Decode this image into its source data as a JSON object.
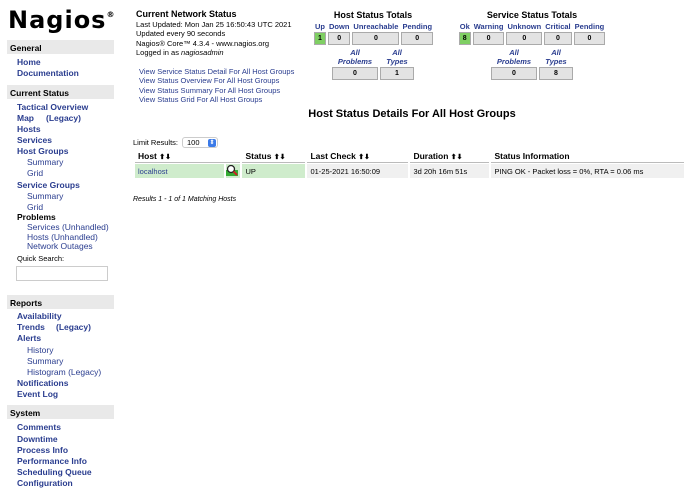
{
  "logo": "Nagios",
  "sidebar": {
    "general": {
      "title": "General",
      "items": [
        "Home",
        "Documentation"
      ]
    },
    "current": {
      "title": "Current Status",
      "items": {
        "tactical": "Tactical Overview",
        "map": "Map",
        "map_legacy": "(Legacy)",
        "hosts": "Hosts",
        "services": "Services",
        "host_groups": "Host Groups",
        "hg_summary": "Summary",
        "hg_grid": "Grid",
        "service_groups": "Service Groups",
        "sg_summary": "Summary",
        "sg_grid": "Grid",
        "problems": "Problems",
        "svc_unhandled": "Services (Unhandled)",
        "hosts_unhandled": "Hosts (Unhandled)",
        "outages": "Network Outages"
      }
    },
    "quick_search": "Quick Search:",
    "reports": {
      "title": "Reports",
      "items": {
        "availability": "Availability",
        "trends": "Trends",
        "trends_legacy": "(Legacy)",
        "alerts": "Alerts",
        "history": "History",
        "summary": "Summary",
        "histogram": "Histogram (Legacy)",
        "notifications": "Notifications",
        "event_log": "Event Log"
      }
    },
    "system": {
      "title": "System",
      "items": [
        "Comments",
        "Downtime",
        "Process Info",
        "Performance Info",
        "Scheduling Queue",
        "Configuration"
      ]
    }
  },
  "info": {
    "title": "Current Network Status",
    "updated": "Last Updated: Mon Jan 25 16:50:43 UTC 2021",
    "interval": "Updated every 90 seconds",
    "version": "Nagios® Core™ 4.3.4 - www.nagios.org",
    "logged_prefix": "Logged in as ",
    "user": "nagiosadmin"
  },
  "links": [
    "View Service Status Detail For All Host Groups",
    "View Status Overview For All Host Groups",
    "View Status Summary For All Host Groups",
    "View Status Grid For All Host Groups"
  ],
  "host_totals": {
    "title": "Host Status Totals",
    "labels": [
      "Up",
      "Down",
      "Unreachable",
      "Pending"
    ],
    "values": [
      "1",
      "0",
      "0",
      "0"
    ],
    "sub_labels": [
      "All Problems",
      "All Types"
    ],
    "sub_values": [
      "0",
      "1"
    ]
  },
  "service_totals": {
    "title": "Service Status Totals",
    "labels": [
      "Ok",
      "Warning",
      "Unknown",
      "Critical",
      "Pending"
    ],
    "values": [
      "8",
      "0",
      "0",
      "0",
      "0"
    ],
    "sub_labels": [
      "All Problems",
      "All Types"
    ],
    "sub_values": [
      "0",
      "8"
    ]
  },
  "colors": {
    "ok": "#7fcf63",
    "up_row": "#cfeccc",
    "link": "#2a3d8f"
  },
  "page_title": "Host Status Details For All Host Groups",
  "limit": {
    "label": "Limit Results:",
    "value": "100"
  },
  "table": {
    "headers": [
      "Host",
      "Status",
      "Last Check",
      "Duration",
      "Status Information"
    ],
    "sort_glyph": "⬆⬇",
    "rows": [
      {
        "host": "localhost",
        "status": "UP",
        "last_check": "01-25-2021 16:50:09",
        "duration": "3d 20h 16m 51s",
        "info": "PING OK - Packet loss = 0%, RTA = 0.06 ms"
      }
    ]
  },
  "results": "Results 1 - 1 of 1 Matching Hosts"
}
